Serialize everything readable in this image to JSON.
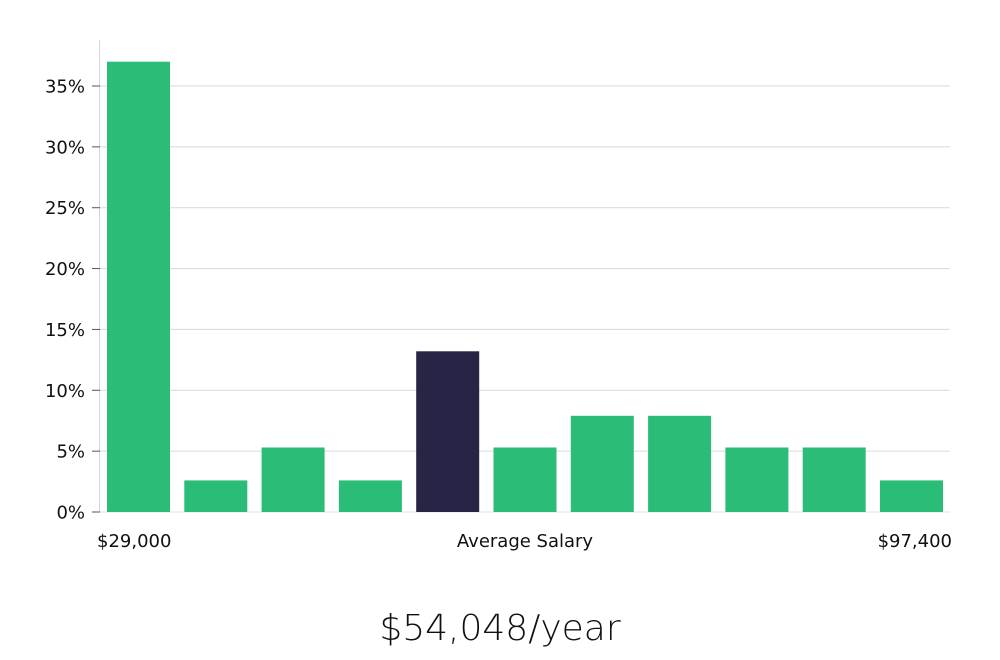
{
  "chart_data": {
    "type": "bar",
    "title": "",
    "xlabel": "Average Salary",
    "ylabel": "",
    "x_min_label": "$29,000",
    "x_max_label": "$97,400",
    "ylim": [
      0,
      38
    ],
    "yticks": [
      0,
      5,
      10,
      15,
      20,
      25,
      30,
      35
    ],
    "ytick_labels": [
      "0%",
      "5%",
      "10%",
      "15%",
      "20%",
      "25%",
      "30%",
      "35%"
    ],
    "values": [
      37,
      2.6,
      5.3,
      2.6,
      13.2,
      5.3,
      7.9,
      7.9,
      5.3,
      5.3,
      2.6
    ],
    "highlight_index": 4,
    "bar_color": "#2bbd77",
    "highlight_color": "#272445",
    "grid": true
  },
  "summary": {
    "average_salary": "$54,048/year"
  }
}
